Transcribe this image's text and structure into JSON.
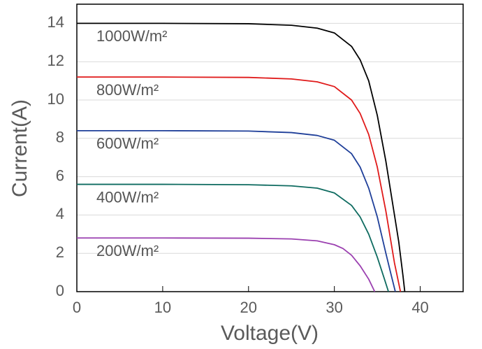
{
  "chart_data": {
    "type": "line",
    "xlabel": "Voltage(V)",
    "ylabel": "Current(A)",
    "xlim": [
      0,
      45
    ],
    "xticks": [
      0,
      10,
      20,
      30,
      40
    ],
    "ylim": [
      0,
      15
    ],
    "yticks": [
      0,
      2,
      4,
      6,
      8,
      10,
      12,
      14
    ],
    "grid": true,
    "series": [
      {
        "name": "1000W/m²",
        "color": "#000000",
        "x": [
          0,
          10,
          20,
          25,
          28,
          30,
          32,
          33,
          34,
          35,
          36,
          37,
          37.5,
          38,
          38.2
        ],
        "values": [
          14.0,
          14.0,
          13.98,
          13.9,
          13.75,
          13.5,
          12.8,
          12.1,
          11.0,
          9.2,
          6.8,
          4.0,
          2.6,
          0.8,
          0
        ]
      },
      {
        "name": "800W/m²",
        "color": "#e01a1a",
        "x": [
          0,
          10,
          20,
          25,
          28,
          30,
          32,
          33,
          34,
          35,
          36,
          37,
          37.7
        ],
        "values": [
          11.2,
          11.2,
          11.18,
          11.1,
          10.95,
          10.7,
          10.0,
          9.3,
          8.2,
          6.5,
          4.2,
          1.5,
          0
        ]
      },
      {
        "name": "600W/m²",
        "color": "#1f3f99",
        "x": [
          0,
          10,
          20,
          25,
          28,
          30,
          32,
          33,
          34,
          35,
          36,
          36.6,
          37.1
        ],
        "values": [
          8.4,
          8.4,
          8.38,
          8.3,
          8.15,
          7.9,
          7.2,
          6.5,
          5.4,
          3.9,
          2.0,
          0.9,
          0
        ]
      },
      {
        "name": "400W/m²",
        "color": "#0e6b60",
        "x": [
          0,
          10,
          20,
          25,
          28,
          30,
          32,
          33,
          34,
          35,
          35.8,
          36.3
        ],
        "values": [
          5.6,
          5.6,
          5.58,
          5.52,
          5.4,
          5.15,
          4.5,
          3.9,
          3.0,
          1.8,
          0.7,
          0
        ]
      },
      {
        "name": "200W/m²",
        "color": "#9b40b0",
        "x": [
          0,
          10,
          20,
          25,
          28,
          30,
          31,
          32,
          33,
          34,
          34.7
        ],
        "values": [
          2.8,
          2.8,
          2.79,
          2.75,
          2.65,
          2.45,
          2.25,
          1.9,
          1.35,
          0.65,
          0
        ]
      }
    ]
  }
}
